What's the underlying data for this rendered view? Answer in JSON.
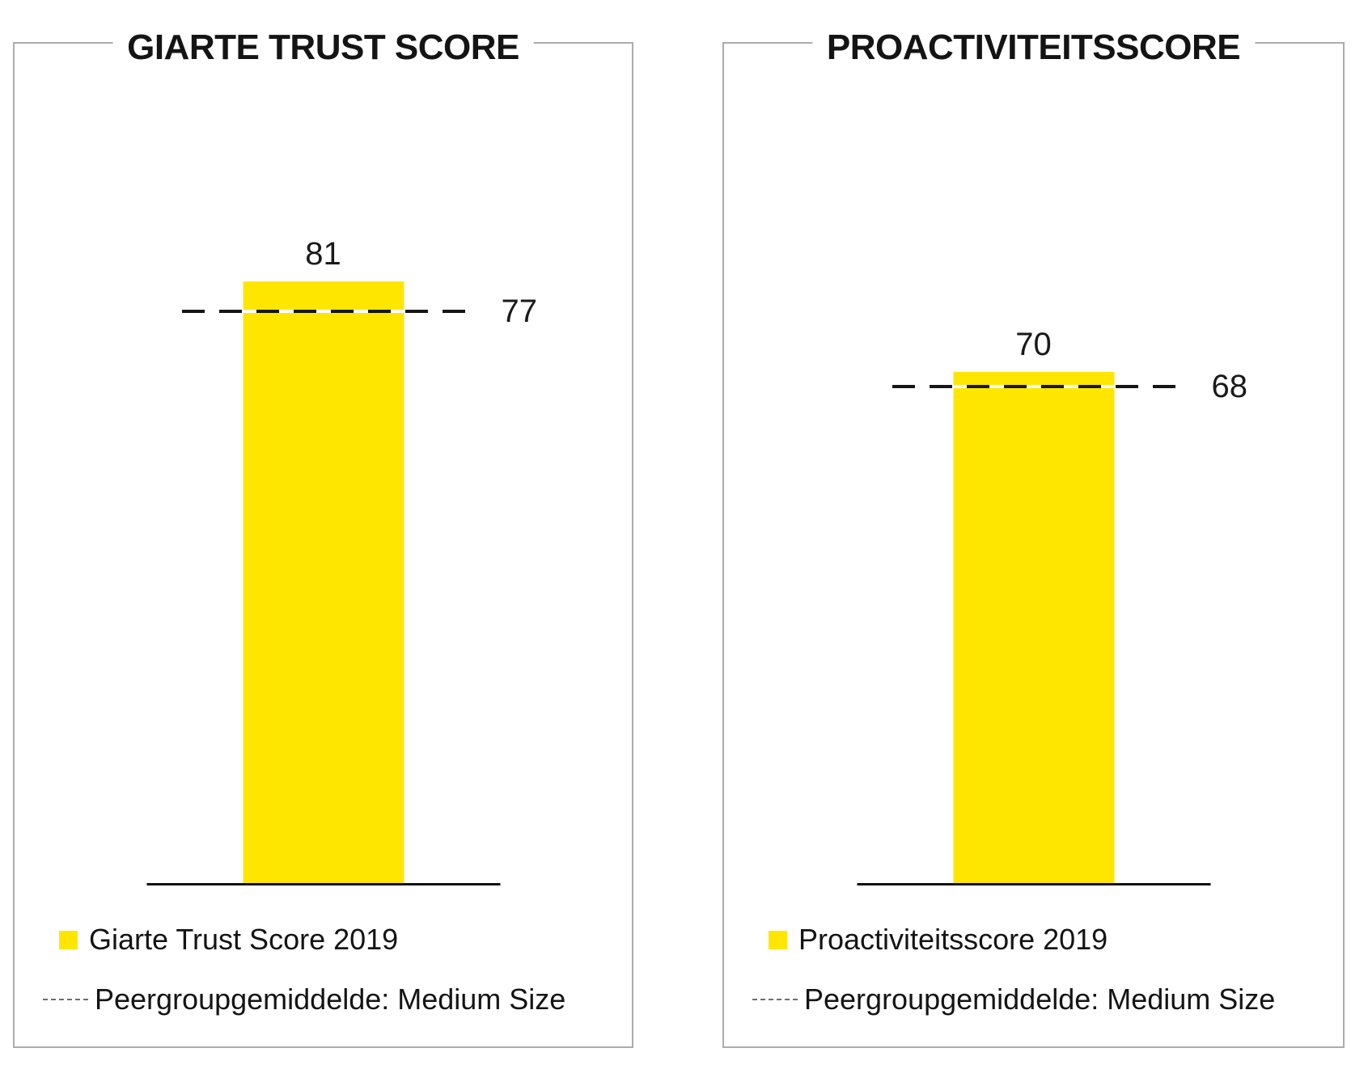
{
  "colors": {
    "bar_yellow": "#FFE600",
    "panel_border": "#ACACAC",
    "axis_black": "#111111",
    "text_dark": "#141414",
    "peer_dash_black": "#161616",
    "peer_dash_gap_white": "#FFFFFF"
  },
  "chart_data": [
    {
      "type": "bar",
      "title": "GIARTE TRUST SCORE",
      "categories": [
        "Giarte Trust Score 2019"
      ],
      "values": [
        81
      ],
      "bar": {
        "name": "Giarte Trust Score 2019",
        "value": 81,
        "display": "81",
        "color": "#FFE600"
      },
      "peer": {
        "name": "Peergroupgemiddelde: Medium Size",
        "value": 77,
        "display": "77",
        "style": "dashed"
      },
      "ylabel": "",
      "xlabel": "",
      "ylim": [
        0,
        113
      ],
      "grid": false,
      "legend_position": "bottom-left",
      "legend": [
        {
          "swatch": "yellow-square",
          "label": "Giarte Trust Score 2019"
        },
        {
          "swatch": "dashed-line",
          "label": "Peergroupgemiddelde: Medium Size"
        }
      ]
    },
    {
      "type": "bar",
      "title": "PROACTIVITEITSSCORE",
      "categories": [
        "Proactiviteitsscore 2019"
      ],
      "values": [
        70
      ],
      "bar": {
        "name": "Proactiviteitsscore 2019",
        "value": 70,
        "display": "70",
        "color": "#FFE600"
      },
      "peer": {
        "name": "Peergroupgemiddelde: Medium Size",
        "value": 68,
        "display": "68",
        "style": "dashed"
      },
      "ylabel": "",
      "xlabel": "",
      "ylim": [
        0,
        115
      ],
      "grid": false,
      "legend_position": "bottom-left",
      "legend": [
        {
          "swatch": "yellow-square",
          "label": "Proactiviteitsscore 2019"
        },
        {
          "swatch": "dashed-line",
          "label": "Peergroupgemiddelde: Medium Size"
        }
      ]
    }
  ]
}
